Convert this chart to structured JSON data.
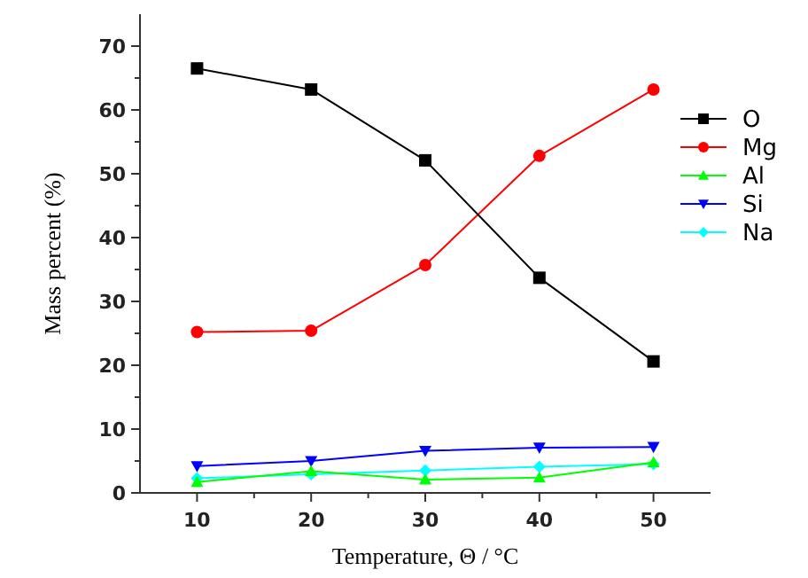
{
  "chart_data": {
    "type": "line",
    "xlabel": "Temperature, Θ / °C",
    "ylabel": "Mass percent (%)",
    "x": [
      10,
      20,
      30,
      40,
      50
    ],
    "xlim": [
      5,
      55
    ],
    "xticks": [
      10,
      20,
      30,
      40,
      50
    ],
    "ylim": [
      0,
      75
    ],
    "yticks": [
      0,
      10,
      20,
      30,
      40,
      50,
      60,
      70
    ],
    "legend": "right",
    "series": [
      {
        "name": "O",
        "color": "#000000",
        "marker": "square",
        "values": [
          66.5,
          63.2,
          52.1,
          33.7,
          20.6
        ]
      },
      {
        "name": "Mg",
        "color": "#ff0000",
        "marker": "circle",
        "values": [
          25.2,
          25.4,
          35.7,
          52.8,
          63.2
        ]
      },
      {
        "name": "Al",
        "color": "#00ff00",
        "marker": "triangle",
        "values": [
          1.7,
          3.4,
          2.1,
          2.4,
          4.8
        ]
      },
      {
        "name": "Si",
        "color": "#0000ff",
        "marker": "triangle-down",
        "values": [
          4.2,
          5.0,
          6.6,
          7.1,
          7.2
        ]
      },
      {
        "name": "Na",
        "color": "#00ffff",
        "marker": "diamond",
        "values": [
          2.3,
          2.9,
          3.5,
          4.1,
          4.5
        ]
      }
    ]
  }
}
